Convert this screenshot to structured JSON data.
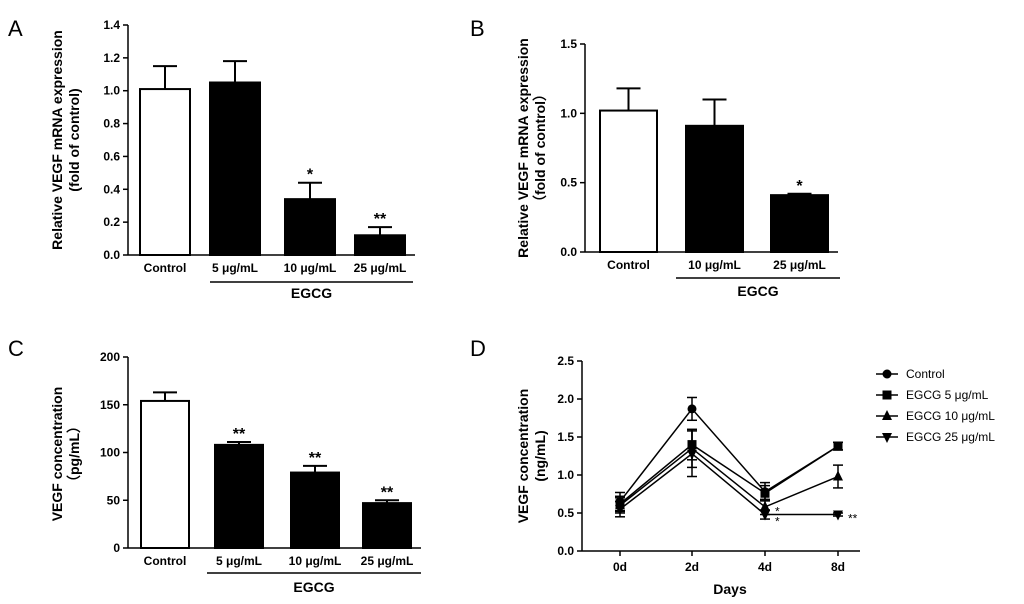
{
  "chart_data": [
    {
      "panel": "A",
      "type": "bar",
      "categories": [
        "Control",
        "5 μg/mL",
        "10 μg/mL",
        "25 μg/mL"
      ],
      "values": [
        1.01,
        1.05,
        0.34,
        0.12
      ],
      "errors": [
        0.14,
        0.13,
        0.1,
        0.05
      ],
      "fills": [
        "#ffffff",
        "#000000",
        "#000000",
        "#000000"
      ],
      "significance": [
        "",
        "",
        "*",
        "**"
      ],
      "group_label": "EGCG",
      "group_categories": [
        1,
        3
      ],
      "ylabel_lines": [
        "Relative VEGF mRNA expression",
        "(fold of control)"
      ],
      "ylim": [
        0,
        1.4
      ],
      "yticks": [
        "0.0",
        "0.2",
        "0.4",
        "0.6",
        "0.8",
        "1.0",
        "1.2",
        "1.4"
      ]
    },
    {
      "panel": "B",
      "type": "bar",
      "categories": [
        "Control",
        "10 μg/mL",
        "25 μg/mL"
      ],
      "values": [
        1.02,
        0.91,
        0.41
      ],
      "errors": [
        0.16,
        0.19,
        0.01
      ],
      "fills": [
        "#ffffff",
        "#000000",
        "#000000"
      ],
      "significance": [
        "",
        "",
        "*"
      ],
      "group_label": "EGCG",
      "group_categories": [
        1,
        2
      ],
      "ylabel_lines": [
        "Relative VEGF mRNA expression",
        "（fold of control）"
      ],
      "ylim": [
        0,
        1.5
      ],
      "yticks": [
        "0.0",
        "0.5",
        "1.0",
        "1.5"
      ]
    },
    {
      "panel": "C",
      "type": "bar",
      "categories": [
        "Control",
        "5 μg/mL",
        "10 μg/mL",
        "25 μg/mL"
      ],
      "values": [
        154,
        108,
        79,
        47
      ],
      "errors": [
        9,
        3,
        7,
        3
      ],
      "fills": [
        "#ffffff",
        "#000000",
        "#000000",
        "#000000"
      ],
      "significance": [
        "",
        "**",
        "**",
        "**"
      ],
      "group_label": "EGCG",
      "group_categories": [
        1,
        3
      ],
      "ylabel_lines": [
        "VEGF concentration",
        "（pg/mL）"
      ],
      "ylim": [
        0,
        200
      ],
      "yticks": [
        "0",
        "50",
        "100",
        "150",
        "200"
      ]
    },
    {
      "panel": "D",
      "type": "line",
      "x": [
        "0d",
        "2d",
        "4d",
        "8d"
      ],
      "xlabel": "Days",
      "ylabel_lines": [
        "VEGF concentration",
        "(ng/mL)"
      ],
      "ylim": [
        0,
        2.5
      ],
      "yticks": [
        "0.0",
        "0.5",
        "1.0",
        "1.5",
        "2.0",
        "2.5"
      ],
      "series": [
        {
          "name": "Control",
          "marker": "circle",
          "values": [
            0.65,
            1.87,
            0.78,
            1.38
          ],
          "errors": [
            0.12,
            0.15,
            0.12,
            0.05
          ]
        },
        {
          "name": "EGCG 5 μg/mL",
          "marker": "square",
          "values": [
            0.62,
            1.4,
            0.76,
            1.38
          ],
          "errors": [
            0.1,
            0.2,
            0.1,
            0.05
          ]
        },
        {
          "name": "EGCG 10 μg/mL",
          "marker": "triangle-up",
          "values": [
            0.6,
            1.35,
            0.58,
            0.98
          ],
          "errors": [
            0.1,
            0.25,
            0.1,
            0.15
          ]
        },
        {
          "name": "EGCG 25 μg/mL",
          "marker": "triangle-down",
          "values": [
            0.55,
            1.28,
            0.48,
            0.48
          ],
          "errors": [
            0.1,
            0.3,
            0.06,
            0.02
          ]
        }
      ],
      "annotations": [
        {
          "x": "4d",
          "text": "*"
        },
        {
          "x": "4d",
          "text": "*"
        },
        {
          "x": "8d",
          "text": "**"
        }
      ]
    }
  ]
}
